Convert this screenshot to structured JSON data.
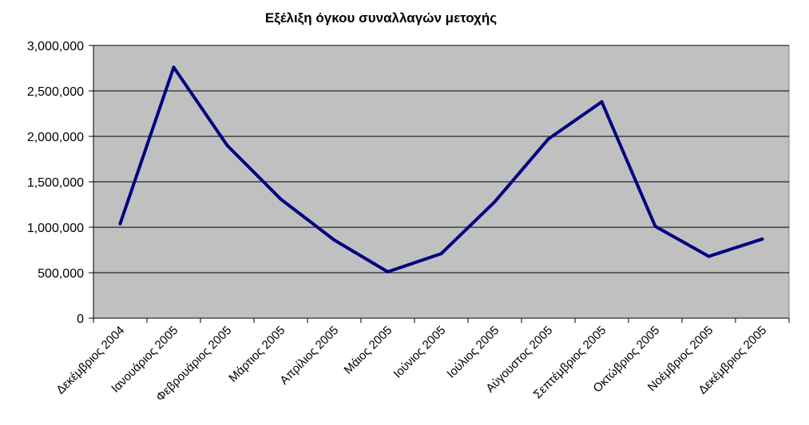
{
  "chart_data": {
    "type": "line",
    "title": "Εξέλιξη όγκου συναλλαγών μετοχής",
    "xlabel": "",
    "ylabel": "",
    "categories": [
      "Δεκέμβριος 2004",
      "Ιανουάριος 2005",
      "Φεβρουάριος 2005",
      "Μάρτιος 2005",
      "Απρίλιος 2005",
      "Μάιος 2005",
      "Ιούνιος 2005",
      "Ιούλιος 2005",
      "Αύγουστος 2005",
      "Σεπτέμβριος 2005",
      "Οκτώβριος 2005",
      "Νοέμβριος 2005",
      "Δεκέμβριος 2005"
    ],
    "series": [
      {
        "values": [
          1040000,
          2760000,
          1900000,
          1310000,
          860000,
          510000,
          710000,
          1280000,
          1970000,
          2380000,
          1010000,
          680000,
          870000
        ]
      }
    ],
    "ylim": [
      0,
      3000000
    ],
    "yticks": [
      0,
      500000,
      1000000,
      1500000,
      2000000,
      2500000,
      3000000
    ],
    "ytick_labels": [
      "0",
      "500,000",
      "1,000,000",
      "1,500,000",
      "2,000,000",
      "2,500,000",
      "3,000,000"
    ],
    "grid": true,
    "legend": "none",
    "colors": {
      "plot_background": "#c0c0c0",
      "line": "#000080",
      "gridline": "#000000"
    }
  }
}
